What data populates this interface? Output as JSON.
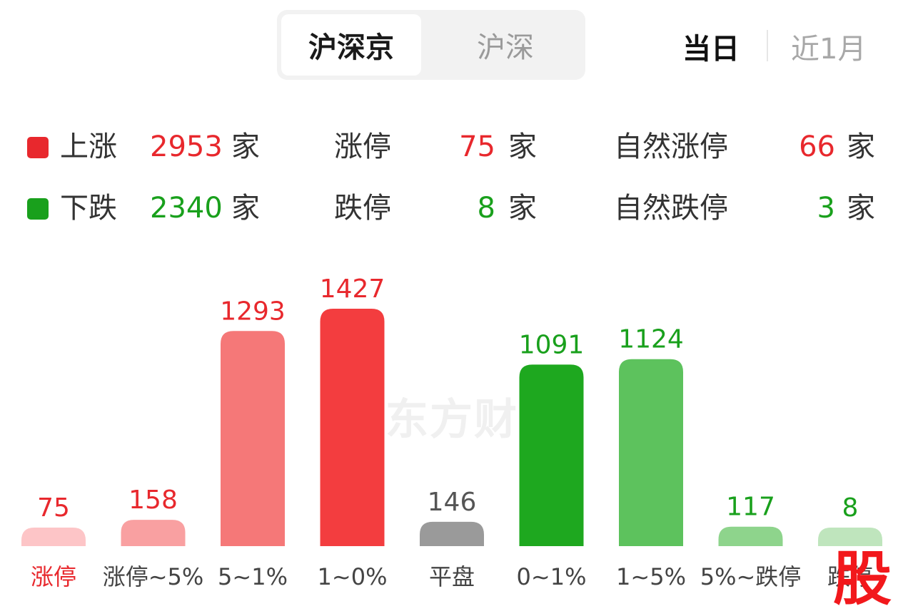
{
  "market_tabs": {
    "tabs": [
      "沪深京",
      "沪深"
    ],
    "active": "沪深京"
  },
  "period_tabs": {
    "tabs": [
      "当日",
      "近1月"
    ],
    "active": "当日"
  },
  "stats": {
    "rise": {
      "label": "上涨",
      "value": "2953",
      "unit": "家"
    },
    "fall": {
      "label": "下跌",
      "value": "2340",
      "unit": "家"
    },
    "limit_up": {
      "label": "涨停",
      "value": "75",
      "unit": "家"
    },
    "limit_down": {
      "label": "跌停",
      "value": "8",
      "unit": "家"
    },
    "natural_limit_up": {
      "label": "自然涨停",
      "value": "66",
      "unit": "家"
    },
    "natural_limit_down": {
      "label": "自然跌停",
      "value": "3",
      "unit": "家"
    }
  },
  "watermark": "东方财",
  "brand_mark": "股",
  "colors": {
    "up": "#e8282d",
    "down": "#19a01c",
    "flat": "#999999"
  },
  "chart_data": {
    "type": "bar",
    "categories": [
      "涨停",
      "涨停~5%",
      "5~1%",
      "1~0%",
      "平盘",
      "0~1%",
      "1~5%",
      "5%~跌停",
      "跌停"
    ],
    "values": [
      75,
      158,
      1293,
      1427,
      146,
      1091,
      1124,
      117,
      8
    ],
    "bar_colors": [
      "#fdc5c7",
      "#f9a0a1",
      "#f57878",
      "#f33d3f",
      "#9a9a9a",
      "#1ea81f",
      "#5dc25d",
      "#8ed48c",
      "#bfe5bd"
    ],
    "label_colors": [
      "#e8282d",
      "#e8282d",
      "#e8282d",
      "#e8282d",
      "#555555",
      "#19a01c",
      "#19a01c",
      "#19a01c",
      "#19a01c"
    ],
    "category_label_colors": [
      "#e8282d",
      "#444444",
      "#444444",
      "#444444",
      "#444444",
      "#444444",
      "#444444",
      "#444444",
      "#444444"
    ],
    "title": "",
    "xlabel": "",
    "ylabel": "",
    "grid": false
  }
}
